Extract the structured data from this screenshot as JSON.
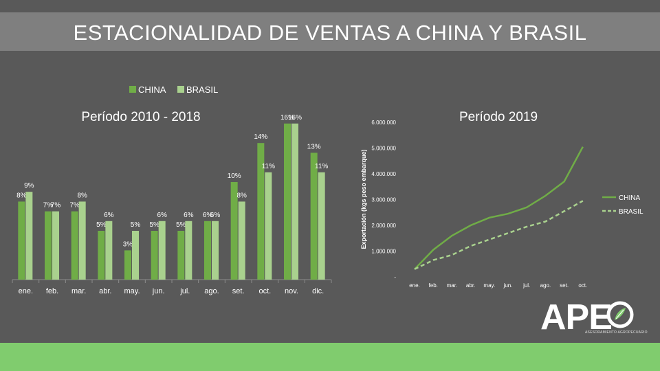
{
  "slide": {
    "title": "ESTACIONALIDAD DE VENTAS A CHINA Y BRASIL",
    "accent_color": "#80cc6e",
    "background_color": "#595959"
  },
  "logo": {
    "text": "APE",
    "tagline": "ASESORAMIENTO AGROPECUARIO",
    "icon": "leaf-circle-icon"
  },
  "chart_data": [
    {
      "type": "bar",
      "title": "Período 2010 - 2018",
      "categories": [
        "ene.",
        "feb.",
        "mar.",
        "abr.",
        "may.",
        "jun.",
        "jul.",
        "ago.",
        "set.",
        "oct.",
        "nov.",
        "dic."
      ],
      "series": [
        {
          "name": "CHINA",
          "color": "#70ad47",
          "values": [
            8,
            7,
            7,
            5,
            3,
            5,
            5,
            6,
            10,
            14,
            16,
            13
          ],
          "labels": [
            "8%",
            "7%",
            "7%",
            "5%",
            "3%",
            "5%",
            "5%",
            "6%",
            "10%",
            "14%",
            "16%",
            "13%"
          ]
        },
        {
          "name": "BRASIL",
          "color": "#a9d18e",
          "values": [
            9,
            7,
            8,
            6,
            5,
            6,
            6,
            6,
            8,
            11,
            16,
            11
          ],
          "labels": [
            "9%",
            "7%",
            "8%",
            "6%",
            "5%",
            "6%",
            "6%",
            "6%",
            "8%",
            "11%",
            "16%",
            "11%"
          ]
        }
      ],
      "legend_position": "top",
      "grid": false,
      "ylim": [
        0,
        17
      ]
    },
    {
      "type": "line",
      "title": "Período 2019",
      "ylabel": "Exportación (kgs peso embarque)",
      "categories": [
        "ene.",
        "feb.",
        "mar.",
        "abr.",
        "may.",
        "jun.",
        "jul.",
        "ago.",
        "set.",
        "oct."
      ],
      "y_ticks": [
        "-",
        "1.000.000",
        "2.000.000",
        "3.000.000",
        "4.000.000",
        "5.000.000",
        "6.000.000"
      ],
      "ylim": [
        0,
        6000000
      ],
      "series": [
        {
          "name": "CHINA",
          "color": "#70ad47",
          "dash": false,
          "values": [
            300000,
            1050000,
            1600000,
            2000000,
            2300000,
            2450000,
            2700000,
            3150000,
            3700000,
            5050000
          ]
        },
        {
          "name": "BRASIL",
          "color": "#a9d18e",
          "dash": true,
          "values": [
            300000,
            650000,
            850000,
            1200000,
            1450000,
            1700000,
            1950000,
            2150000,
            2550000,
            2950000
          ]
        }
      ],
      "legend_position": "right",
      "grid": false
    }
  ]
}
